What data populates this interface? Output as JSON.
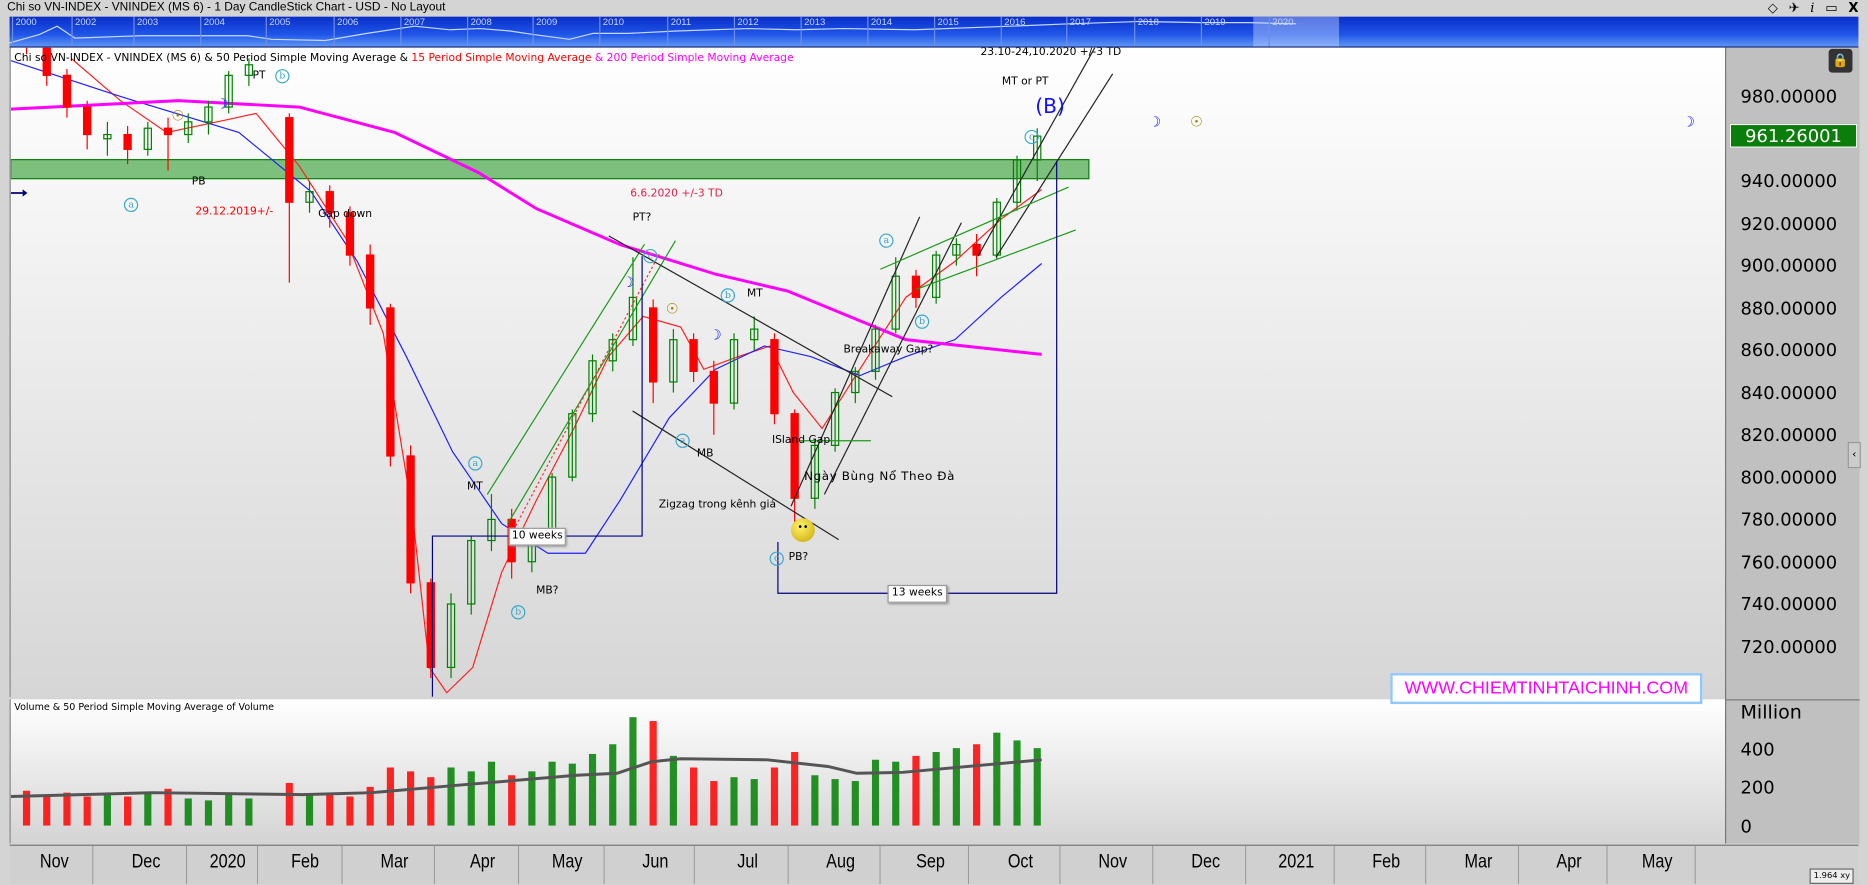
{
  "window": {
    "title": "Chi so VN-INDEX - VNINDEX (MS 6) - 1 Day CandleStick Chart - USD - No Layout",
    "controls": [
      "◇",
      "📌",
      "i",
      "▭",
      "X"
    ]
  },
  "navigator": {
    "years": [
      "2000",
      "2002",
      "2003",
      "2004",
      "2005",
      "2006",
      "2007",
      "2008",
      "2009",
      "2010",
      "2011",
      "2012",
      "2013",
      "2014",
      "2015",
      "2016",
      "2017",
      "2018",
      "2019",
      "2020"
    ]
  },
  "legend": {
    "part1": "Chi so VN-INDEX - VNINDEX (MS 6) & 50 Period Simple Moving Average & ",
    "part2": "15 Period Simple Moving Average",
    "part3": " & 200 Period Simple Moving Average"
  },
  "price_axis": {
    "ticks": [
      "980.00000",
      "940.00000",
      "920.00000",
      "900.00000",
      "880.00000",
      "860.00000",
      "840.00000",
      "820.00000",
      "800.00000",
      "780.00000",
      "760.00000",
      "740.00000",
      "720.00000"
    ],
    "last_price": "961.26001"
  },
  "volume": {
    "title": "Volume & 50 Period Simple Moving Average of Volume",
    "unit": "Million",
    "ticks": [
      "400",
      "200",
      "0"
    ]
  },
  "time_axis": {
    "months": [
      "Nov",
      "Dec",
      "2020",
      "Feb",
      "Mar",
      "Apr",
      "May",
      "Jun",
      "Jul",
      "Aug",
      "Sep",
      "Oct",
      "Nov",
      "Dec",
      "2021",
      "Feb",
      "Mar",
      "Apr",
      "May"
    ]
  },
  "annotations": {
    "pt_top": "PT",
    "pb": "PB",
    "date_1": "29.12.2019+/-",
    "gap_down": "Gap down",
    "date_2": "6.6.2020 +/-3 TD",
    "pt_q": "PT?",
    "mt_1": "MT",
    "mb_q": "MB?",
    "weeks_10": "10 weeks",
    "zigzag": "Zigzag trong kênh giá",
    "mb": "MB",
    "mt_2": "MT",
    "island_gap": "ISland Gap",
    "momentum_day": "Ngày Bùng Nổ Theo Đà",
    "pb_q": "PB?",
    "breakaway": "Breakaway Gap?",
    "weeks_13": "13 weeks",
    "date_3": "23.10-24,10.2020  +/-3 TD",
    "mt_or_pt": "MT or PT",
    "wave_B": "(B)",
    "wave_a": "a",
    "wave_b": "b",
    "wave_c": "c"
  },
  "watermark": "WWW.CHIEMTINHTAICHINH.COM",
  "zoom_badge": "1.964",
  "colors": {
    "up": "#008000",
    "down": "#ff0000",
    "ma15": "#ff2020",
    "ma50": "#2020ff",
    "ma200": "#ff00ff",
    "zone": "#7dbf7d",
    "last_price_bg": "#0a7d0a",
    "watermark": "#ff00ff"
  },
  "chart_data": {
    "type": "candlestick",
    "title": "Chi so VN-INDEX - VNINDEX (MS 6) - 1 Day CandleStick Chart - USD",
    "ylim": [
      705,
      1003
    ],
    "xlim": [
      "2019-11-01",
      "2021-05-31"
    ],
    "resistance_zone": [
      941,
      950
    ],
    "candles_weekly_approx": [
      [
        "2019-11-04",
        1020,
        1025,
        1000,
        1005
      ],
      [
        "2019-11-11",
        1005,
        1008,
        985,
        990
      ],
      [
        "2019-11-18",
        990,
        993,
        970,
        975
      ],
      [
        "2019-11-25",
        975,
        978,
        955,
        962
      ],
      [
        "2019-12-02",
        960,
        968,
        952,
        962
      ],
      [
        "2019-12-09",
        962,
        966,
        948,
        955
      ],
      [
        "2019-12-16",
        955,
        968,
        952,
        965
      ],
      [
        "2019-12-23",
        965,
        970,
        945,
        962
      ],
      [
        "2019-12-30",
        962,
        972,
        958,
        968
      ],
      [
        "2020-01-06",
        968,
        978,
        962,
        975
      ],
      [
        "2020-01-13",
        975,
        992,
        972,
        990
      ],
      [
        "2020-01-20",
        990,
        998,
        985,
        995
      ],
      [
        "2020-02-03",
        970,
        972,
        892,
        930
      ],
      [
        "2020-02-10",
        930,
        940,
        925,
        935
      ],
      [
        "2020-02-17",
        935,
        938,
        918,
        925
      ],
      [
        "2020-02-24",
        925,
        928,
        900,
        905
      ],
      [
        "2020-03-02",
        905,
        910,
        872,
        880
      ],
      [
        "2020-03-09",
        880,
        882,
        805,
        810
      ],
      [
        "2020-03-16",
        810,
        815,
        745,
        750
      ],
      [
        "2020-03-23",
        750,
        752,
        705,
        710
      ],
      [
        "2020-03-30",
        710,
        745,
        705,
        740
      ],
      [
        "2020-04-06",
        740,
        772,
        735,
        770
      ],
      [
        "2020-04-13",
        770,
        792,
        765,
        780
      ],
      [
        "2020-04-20",
        780,
        785,
        752,
        760
      ],
      [
        "2020-04-27",
        760,
        775,
        755,
        770
      ],
      [
        "2020-05-04",
        770,
        802,
        768,
        800
      ],
      [
        "2020-05-11",
        800,
        832,
        798,
        830
      ],
      [
        "2020-05-18",
        830,
        858,
        826,
        855
      ],
      [
        "2020-05-25",
        855,
        868,
        850,
        865
      ],
      [
        "2020-06-01",
        865,
        904,
        862,
        885
      ],
      [
        "2020-06-08",
        880,
        884,
        835,
        845
      ],
      [
        "2020-06-15",
        845,
        870,
        840,
        865
      ],
      [
        "2020-06-22",
        865,
        868,
        845,
        850
      ],
      [
        "2020-06-29",
        850,
        855,
        820,
        835
      ],
      [
        "2020-07-06",
        835,
        868,
        832,
        865
      ],
      [
        "2020-07-13",
        865,
        876,
        860,
        870
      ],
      [
        "2020-07-20",
        865,
        868,
        825,
        830
      ],
      [
        "2020-07-27",
        830,
        832,
        775,
        790
      ],
      [
        "2020-08-03",
        790,
        818,
        785,
        815
      ],
      [
        "2020-08-10",
        815,
        842,
        812,
        840
      ],
      [
        "2020-08-17",
        840,
        852,
        835,
        850
      ],
      [
        "2020-08-24",
        850,
        872,
        846,
        870
      ],
      [
        "2020-08-31",
        870,
        904,
        868,
        895
      ],
      [
        "2020-09-07",
        895,
        898,
        880,
        885
      ],
      [
        "2020-09-14",
        885,
        907,
        882,
        905
      ],
      [
        "2020-09-21",
        905,
        913,
        900,
        910
      ],
      [
        "2020-09-28",
        910,
        915,
        895,
        905
      ],
      [
        "2020-10-05",
        905,
        932,
        903,
        930
      ],
      [
        "2020-10-12",
        930,
        952,
        926,
        950
      ],
      [
        "2020-10-19",
        950,
        965,
        940,
        961.26
      ]
    ],
    "ohlc_fields": [
      "date",
      "open",
      "high",
      "low",
      "close"
    ],
    "series": [
      {
        "name": "15 Period Simple Moving Average",
        "points": [
          [
            "2019-11-22",
            998
          ],
          [
            "2019-12-09",
            978
          ],
          [
            "2019-12-25",
            963
          ],
          [
            "2020-01-15",
            969
          ],
          [
            "2020-01-25",
            972
          ],
          [
            "2020-02-09",
            947
          ],
          [
            "2020-02-25",
            913
          ],
          [
            "2020-03-09",
            868
          ],
          [
            "2020-03-19",
            784
          ],
          [
            "2020-03-25",
            710
          ],
          [
            "2020-03-31",
            698
          ],
          [
            "2020-04-09",
            710
          ],
          [
            "2020-04-19",
            755
          ],
          [
            "2020-05-01",
            789
          ],
          [
            "2020-05-14",
            823
          ],
          [
            "2020-05-26",
            857
          ],
          [
            "2020-06-07",
            876
          ],
          [
            "2020-06-20",
            871
          ],
          [
            "2020-06-28",
            851
          ],
          [
            "2020-07-10",
            857
          ],
          [
            "2020-07-21",
            862
          ],
          [
            "2020-07-29",
            840
          ],
          [
            "2020-08-08",
            823
          ],
          [
            "2020-08-21",
            851
          ],
          [
            "2020-09-06",
            885
          ],
          [
            "2020-09-23",
            902
          ],
          [
            "2020-10-09",
            922
          ],
          [
            "2020-10-23",
            936
          ]
        ]
      },
      {
        "name": "50 Period Simple Moving Average",
        "points": [
          [
            "2019-11-01",
            997
          ],
          [
            "2019-12-09",
            980
          ],
          [
            "2020-01-19",
            963
          ],
          [
            "2020-02-13",
            935
          ],
          [
            "2020-02-29",
            902
          ],
          [
            "2020-03-17",
            857
          ],
          [
            "2020-04-02",
            812
          ],
          [
            "2020-04-19",
            778
          ],
          [
            "2020-05-05",
            764
          ],
          [
            "2020-05-18",
            764
          ],
          [
            "2020-05-30",
            789
          ],
          [
            "2020-06-16",
            828
          ],
          [
            "2020-07-02",
            851
          ],
          [
            "2020-07-19",
            862
          ],
          [
            "2020-08-04",
            857
          ],
          [
            "2020-08-21",
            848
          ],
          [
            "2020-09-06",
            857
          ],
          [
            "2020-09-23",
            865
          ],
          [
            "2020-10-09",
            885
          ],
          [
            "2020-10-23",
            901
          ]
        ]
      },
      {
        "name": "200 Period Simple Moving Average",
        "points": [
          [
            "2019-11-01",
            974
          ],
          [
            "2019-12-29",
            978
          ],
          [
            "2020-02-09",
            975
          ],
          [
            "2020-03-13",
            963
          ],
          [
            "2020-04-11",
            944
          ],
          [
            "2020-05-01",
            927
          ],
          [
            "2020-05-30",
            910
          ],
          [
            "2020-07-02",
            896
          ],
          [
            "2020-07-27",
            888
          ],
          [
            "2020-09-06",
            865
          ],
          [
            "2020-10-23",
            858
          ]
        ]
      }
    ],
    "volume_weekly_approx": [
      [
        "2019-11-04",
        180
      ],
      [
        "2019-11-11",
        160
      ],
      [
        "2019-11-18",
        170
      ],
      [
        "2019-11-25",
        150
      ],
      [
        "2019-12-02",
        160
      ],
      [
        "2019-12-09",
        150
      ],
      [
        "2019-12-16",
        170
      ],
      [
        "2019-12-23",
        190
      ],
      [
        "2019-12-30",
        140
      ],
      [
        "2020-01-06",
        130
      ],
      [
        "2020-01-13",
        160
      ],
      [
        "2020-01-20",
        140
      ],
      [
        "2020-02-03",
        220
      ],
      [
        "2020-02-10",
        160
      ],
      [
        "2020-02-17",
        170
      ],
      [
        "2020-02-24",
        150
      ],
      [
        "2020-03-02",
        200
      ],
      [
        "2020-03-09",
        300
      ],
      [
        "2020-03-16",
        280
      ],
      [
        "2020-03-23",
        250
      ],
      [
        "2020-03-30",
        300
      ],
      [
        "2020-04-06",
        280
      ],
      [
        "2020-04-13",
        330
      ],
      [
        "2020-04-20",
        260
      ],
      [
        "2020-04-27",
        280
      ],
      [
        "2020-05-04",
        330
      ],
      [
        "2020-05-11",
        320
      ],
      [
        "2020-05-18",
        370
      ],
      [
        "2020-05-25",
        420
      ],
      [
        "2020-06-01",
        560
      ],
      [
        "2020-06-08",
        540
      ],
      [
        "2020-06-15",
        360
      ],
      [
        "2020-06-22",
        300
      ],
      [
        "2020-06-29",
        230
      ],
      [
        "2020-07-06",
        250
      ],
      [
        "2020-07-13",
        240
      ],
      [
        "2020-07-20",
        300
      ],
      [
        "2020-07-27",
        380
      ],
      [
        "2020-08-03",
        260
      ],
      [
        "2020-08-10",
        240
      ],
      [
        "2020-08-17",
        230
      ],
      [
        "2020-08-24",
        340
      ],
      [
        "2020-08-31",
        330
      ],
      [
        "2020-09-07",
        360
      ],
      [
        "2020-09-14",
        380
      ],
      [
        "2020-09-21",
        400
      ],
      [
        "2020-09-28",
        420
      ],
      [
        "2020-10-05",
        480
      ],
      [
        "2020-10-12",
        440
      ],
      [
        "2020-10-19",
        400
      ]
    ],
    "volume_ma50": [
      [
        "2019-11-01",
        150
      ],
      [
        "2019-12-20",
        170
      ],
      [
        "2020-02-10",
        160
      ],
      [
        "2020-03-05",
        170
      ],
      [
        "2020-04-05",
        210
      ],
      [
        "2020-05-15",
        260
      ],
      [
        "2020-05-29",
        270
      ],
      [
        "2020-06-10",
        330
      ],
      [
        "2020-06-20",
        345
      ],
      [
        "2020-07-20",
        340
      ],
      [
        "2020-08-10",
        305
      ],
      [
        "2020-08-20",
        270
      ],
      [
        "2020-09-05",
        275
      ],
      [
        "2020-10-23",
        340
      ]
    ],
    "volume_unit": "Million",
    "volume_ylim": [
      0,
      500
    ]
  }
}
